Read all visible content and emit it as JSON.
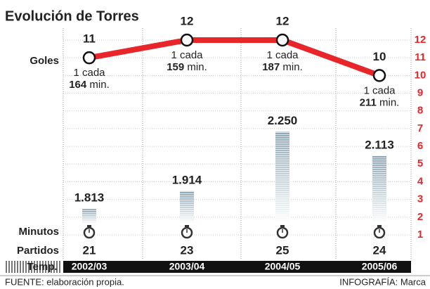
{
  "chart_data": {
    "type": "line",
    "title": "Evolución de Torres",
    "categories": [
      "2002/03",
      "2003/04",
      "2004/05",
      "2005/06"
    ],
    "category_label": "Temp.",
    "ylim": [
      1,
      12
    ],
    "yticks": [
      1,
      2,
      3,
      4,
      5,
      6,
      7,
      8,
      9,
      10,
      11,
      12
    ],
    "y2lim": [
      1730,
      2260
    ],
    "grid": true,
    "series": [
      {
        "name": "Goles",
        "color": "#e8262a",
        "values": [
          11,
          12,
          12,
          10
        ]
      },
      {
        "name": "Minutos",
        "type": "bar",
        "axis": "y2",
        "color": "#8fa6b4",
        "values": [
          1813,
          1914,
          2250,
          2113
        ],
        "value_labels": [
          "1.813",
          "1.914",
          "2.250",
          "2.113"
        ]
      }
    ],
    "annotations": [
      {
        "text": "1 cada",
        "minutes": 164,
        "unit": "min."
      },
      {
        "text": "1 cada",
        "minutes": 159,
        "unit": "min."
      },
      {
        "text": "1 cada",
        "minutes": 187,
        "unit": "min."
      },
      {
        "text": "1 cada",
        "minutes": 211,
        "unit": "min."
      }
    ],
    "matches": {
      "label": "Partidos",
      "values": [
        21,
        23,
        25,
        24
      ]
    },
    "source": "FUENTE: elaboración propia.",
    "credit": "INFOGRAFÍA: Marca"
  }
}
